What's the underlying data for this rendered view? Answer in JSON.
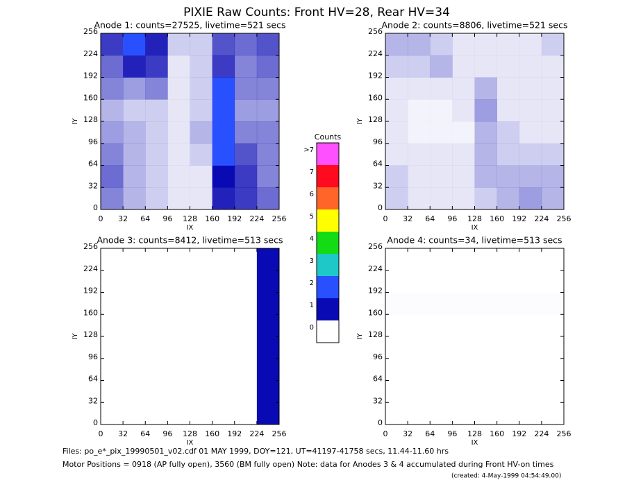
{
  "title": "PIXIE Raw Counts:  Front HV=28, Rear HV=34",
  "colorbar": {
    "title": "Counts",
    "labels": [
      "0",
      "1",
      "2",
      "3",
      "4",
      "5",
      "6",
      "7",
      ">7"
    ],
    "colors": [
      "#ffffff",
      "#0a0ab4",
      "#2850ff",
      "#1ec8c8",
      "#14dc14",
      "#ffff00",
      "#ff6428",
      "#ff0a1e",
      "#ff50ff"
    ]
  },
  "footer": [
    "Files: po_e*_pix_19990501_v02.cdf    01 MAY 1999, DOY=121, UT=41197-41758 secs, 11.44-11.60 hrs",
    "Motor Positions = 0918 (AP fully open), 3560 (BM fully open)    Note: data for Anodes 3 & 4 accumulated during Front HV-on times",
    "(created:  4-May-1999 04:54:49.00)"
  ],
  "chart_data": [
    {
      "type": "heatmap",
      "title": "Anode 1: counts=27525, livetime=521 secs",
      "xlabel": "IX",
      "ylabel": "IY",
      "xlim": [
        0,
        256
      ],
      "ylim": [
        0,
        256
      ],
      "xticks": [
        0,
        32,
        64,
        96,
        128,
        160,
        192,
        224,
        256
      ],
      "yticks": [
        0,
        32,
        64,
        96,
        128,
        160,
        192,
        224,
        256
      ],
      "z": [
        [
          0.5,
          0.3,
          0.2,
          0.1,
          0.1,
          0.9,
          0.8,
          0.6
        ],
        [
          0.6,
          0.3,
          0.2,
          0.1,
          0.1,
          1.0,
          0.8,
          0.5
        ],
        [
          0.5,
          0.3,
          0.2,
          0.1,
          0.2,
          1.2,
          0.7,
          0.5
        ],
        [
          0.4,
          0.3,
          0.2,
          0.1,
          0.3,
          1.3,
          0.5,
          0.5
        ],
        [
          0.3,
          0.2,
          0.2,
          0.1,
          0.2,
          1.4,
          0.4,
          0.4
        ],
        [
          0.5,
          0.4,
          0.5,
          0.1,
          0.2,
          1.2,
          0.5,
          0.5
        ],
        [
          0.6,
          0.9,
          0.8,
          0.1,
          0.2,
          0.8,
          0.5,
          0.6
        ],
        [
          0.8,
          1.2,
          0.9,
          0.2,
          0.2,
          0.7,
          0.6,
          0.7
        ]
      ]
    },
    {
      "type": "heatmap",
      "title": "Anode 2: counts=8806, livetime=521 secs",
      "xlabel": "IX",
      "ylabel": "IY",
      "xlim": [
        0,
        256
      ],
      "ylim": [
        0,
        256
      ],
      "xticks": [
        0,
        32,
        64,
        96,
        128,
        160,
        192,
        224,
        256
      ],
      "yticks": [
        0,
        32,
        64,
        96,
        128,
        160,
        192,
        224,
        256
      ],
      "z": [
        [
          0.2,
          0.1,
          0.1,
          0.1,
          0.2,
          0.3,
          0.4,
          0.3
        ],
        [
          0.2,
          0.1,
          0.1,
          0.1,
          0.3,
          0.3,
          0.3,
          0.3
        ],
        [
          0.1,
          0.1,
          0.1,
          0.1,
          0.3,
          0.2,
          0.2,
          0.2
        ],
        [
          0.1,
          0.05,
          0.05,
          0.05,
          0.3,
          0.2,
          0.1,
          0.1
        ],
        [
          0.1,
          0.05,
          0.05,
          0.1,
          0.4,
          0.1,
          0.1,
          0.1
        ],
        [
          0.1,
          0.1,
          0.1,
          0.1,
          0.3,
          0.1,
          0.1,
          0.1
        ],
        [
          0.2,
          0.2,
          0.3,
          0.1,
          0.1,
          0.1,
          0.1,
          0.1
        ],
        [
          0.3,
          0.3,
          0.2,
          0.1,
          0.1,
          0.1,
          0.1,
          0.2
        ]
      ]
    },
    {
      "type": "heatmap",
      "title": "Anode 3: counts=8412, livetime=513 secs",
      "xlabel": "IX",
      "ylabel": "IY",
      "xlim": [
        0,
        256
      ],
      "ylim": [
        0,
        256
      ],
      "xticks": [
        0,
        32,
        64,
        96,
        128,
        160,
        192,
        224,
        256
      ],
      "yticks": [
        0,
        32,
        64,
        96,
        128,
        160,
        192,
        224,
        256
      ],
      "z": [
        [
          0,
          0,
          0,
          0,
          0,
          0,
          0,
          1.0
        ],
        [
          0,
          0,
          0,
          0,
          0,
          0,
          0,
          1.0
        ],
        [
          0,
          0,
          0,
          0,
          0,
          0,
          0,
          1.0
        ],
        [
          0,
          0,
          0,
          0,
          0,
          0,
          0,
          1.0
        ],
        [
          0,
          0,
          0,
          0,
          0,
          0,
          0,
          1.0
        ],
        [
          0,
          0,
          0,
          0,
          0,
          0,
          0,
          1.0
        ],
        [
          0,
          0,
          0,
          0,
          0,
          0,
          0,
          1.0
        ],
        [
          0,
          0,
          0,
          0,
          0,
          0,
          0,
          1.0
        ]
      ]
    },
    {
      "type": "heatmap",
      "title": "Anode 4: counts=34, livetime=513 secs",
      "xlabel": "IX",
      "ylabel": "IY",
      "xlim": [
        0,
        256
      ],
      "ylim": [
        0,
        256
      ],
      "xticks": [
        0,
        32,
        64,
        96,
        128,
        160,
        192,
        224,
        256
      ],
      "yticks": [
        0,
        32,
        64,
        96,
        128,
        160,
        192,
        224,
        256
      ],
      "z": [
        [
          0,
          0,
          0,
          0,
          0,
          0,
          0,
          0
        ],
        [
          0,
          0,
          0,
          0,
          0,
          0,
          0,
          0
        ],
        [
          0,
          0,
          0,
          0,
          0,
          0,
          0,
          0
        ],
        [
          0,
          0,
          0,
          0,
          0,
          0,
          0,
          0
        ],
        [
          0,
          0,
          0,
          0,
          0,
          0,
          0,
          0
        ],
        [
          0.01,
          0.01,
          0.01,
          0.01,
          0.01,
          0.01,
          0.01,
          0.01
        ],
        [
          0,
          0,
          0,
          0,
          0,
          0,
          0,
          0
        ],
        [
          0,
          0,
          0,
          0,
          0,
          0,
          0,
          0
        ]
      ]
    }
  ]
}
